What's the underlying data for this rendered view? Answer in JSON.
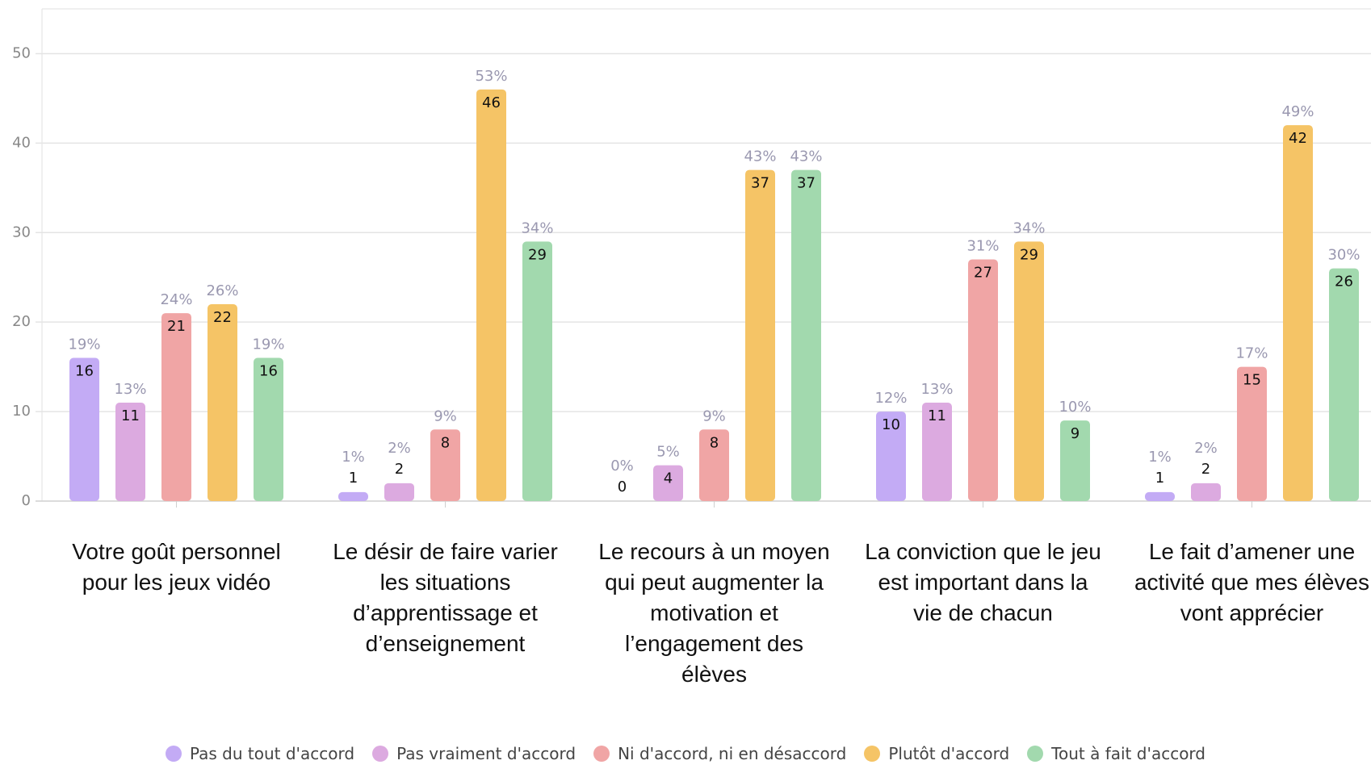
{
  "chart_data": {
    "type": "bar",
    "categories": [
      "Votre goût personnel pour les jeux vidéo",
      "Le désir de faire varier les situations d’apprentissage et d’enseignement",
      "Le recours à un moyen qui peut augmenter la motivation et l’engagement des élèves",
      "La conviction que le jeu est important dans la vie de chacun",
      "Le fait d’amener une activité que mes élèves vont apprécier"
    ],
    "series": [
      {
        "name": "Pas du tout d'accord",
        "color": "#c3abf5",
        "values": [
          16,
          1,
          0,
          10,
          1
        ],
        "percent_labels": [
          "19%",
          "1%",
          "0%",
          "12%",
          "1%"
        ]
      },
      {
        "name": "Pas vraiment d'accord",
        "color": "#dcaae0",
        "values": [
          11,
          2,
          4,
          11,
          2
        ],
        "percent_labels": [
          "13%",
          "2%",
          "5%",
          "13%",
          "2%"
        ]
      },
      {
        "name": "Ni d'accord, ni en désaccord",
        "color": "#f0a5a5",
        "values": [
          21,
          8,
          8,
          27,
          15
        ],
        "percent_labels": [
          "24%",
          "9%",
          "9%",
          "31%",
          "17%"
        ]
      },
      {
        "name": "Plutôt d'accord",
        "color": "#f5c466",
        "values": [
          22,
          46,
          37,
          29,
          42
        ],
        "percent_labels": [
          "26%",
          "53%",
          "43%",
          "34%",
          "49%"
        ]
      },
      {
        "name": "Tout à fait d'accord",
        "color": "#a2d9ae",
        "values": [
          16,
          29,
          37,
          9,
          26
        ],
        "percent_labels": [
          "19%",
          "34%",
          "43%",
          "10%",
          "30%"
        ]
      }
    ],
    "ylim": [
      0,
      55
    ],
    "yticks": [
      0,
      10,
      20,
      30,
      40,
      50
    ],
    "grid": true
  }
}
